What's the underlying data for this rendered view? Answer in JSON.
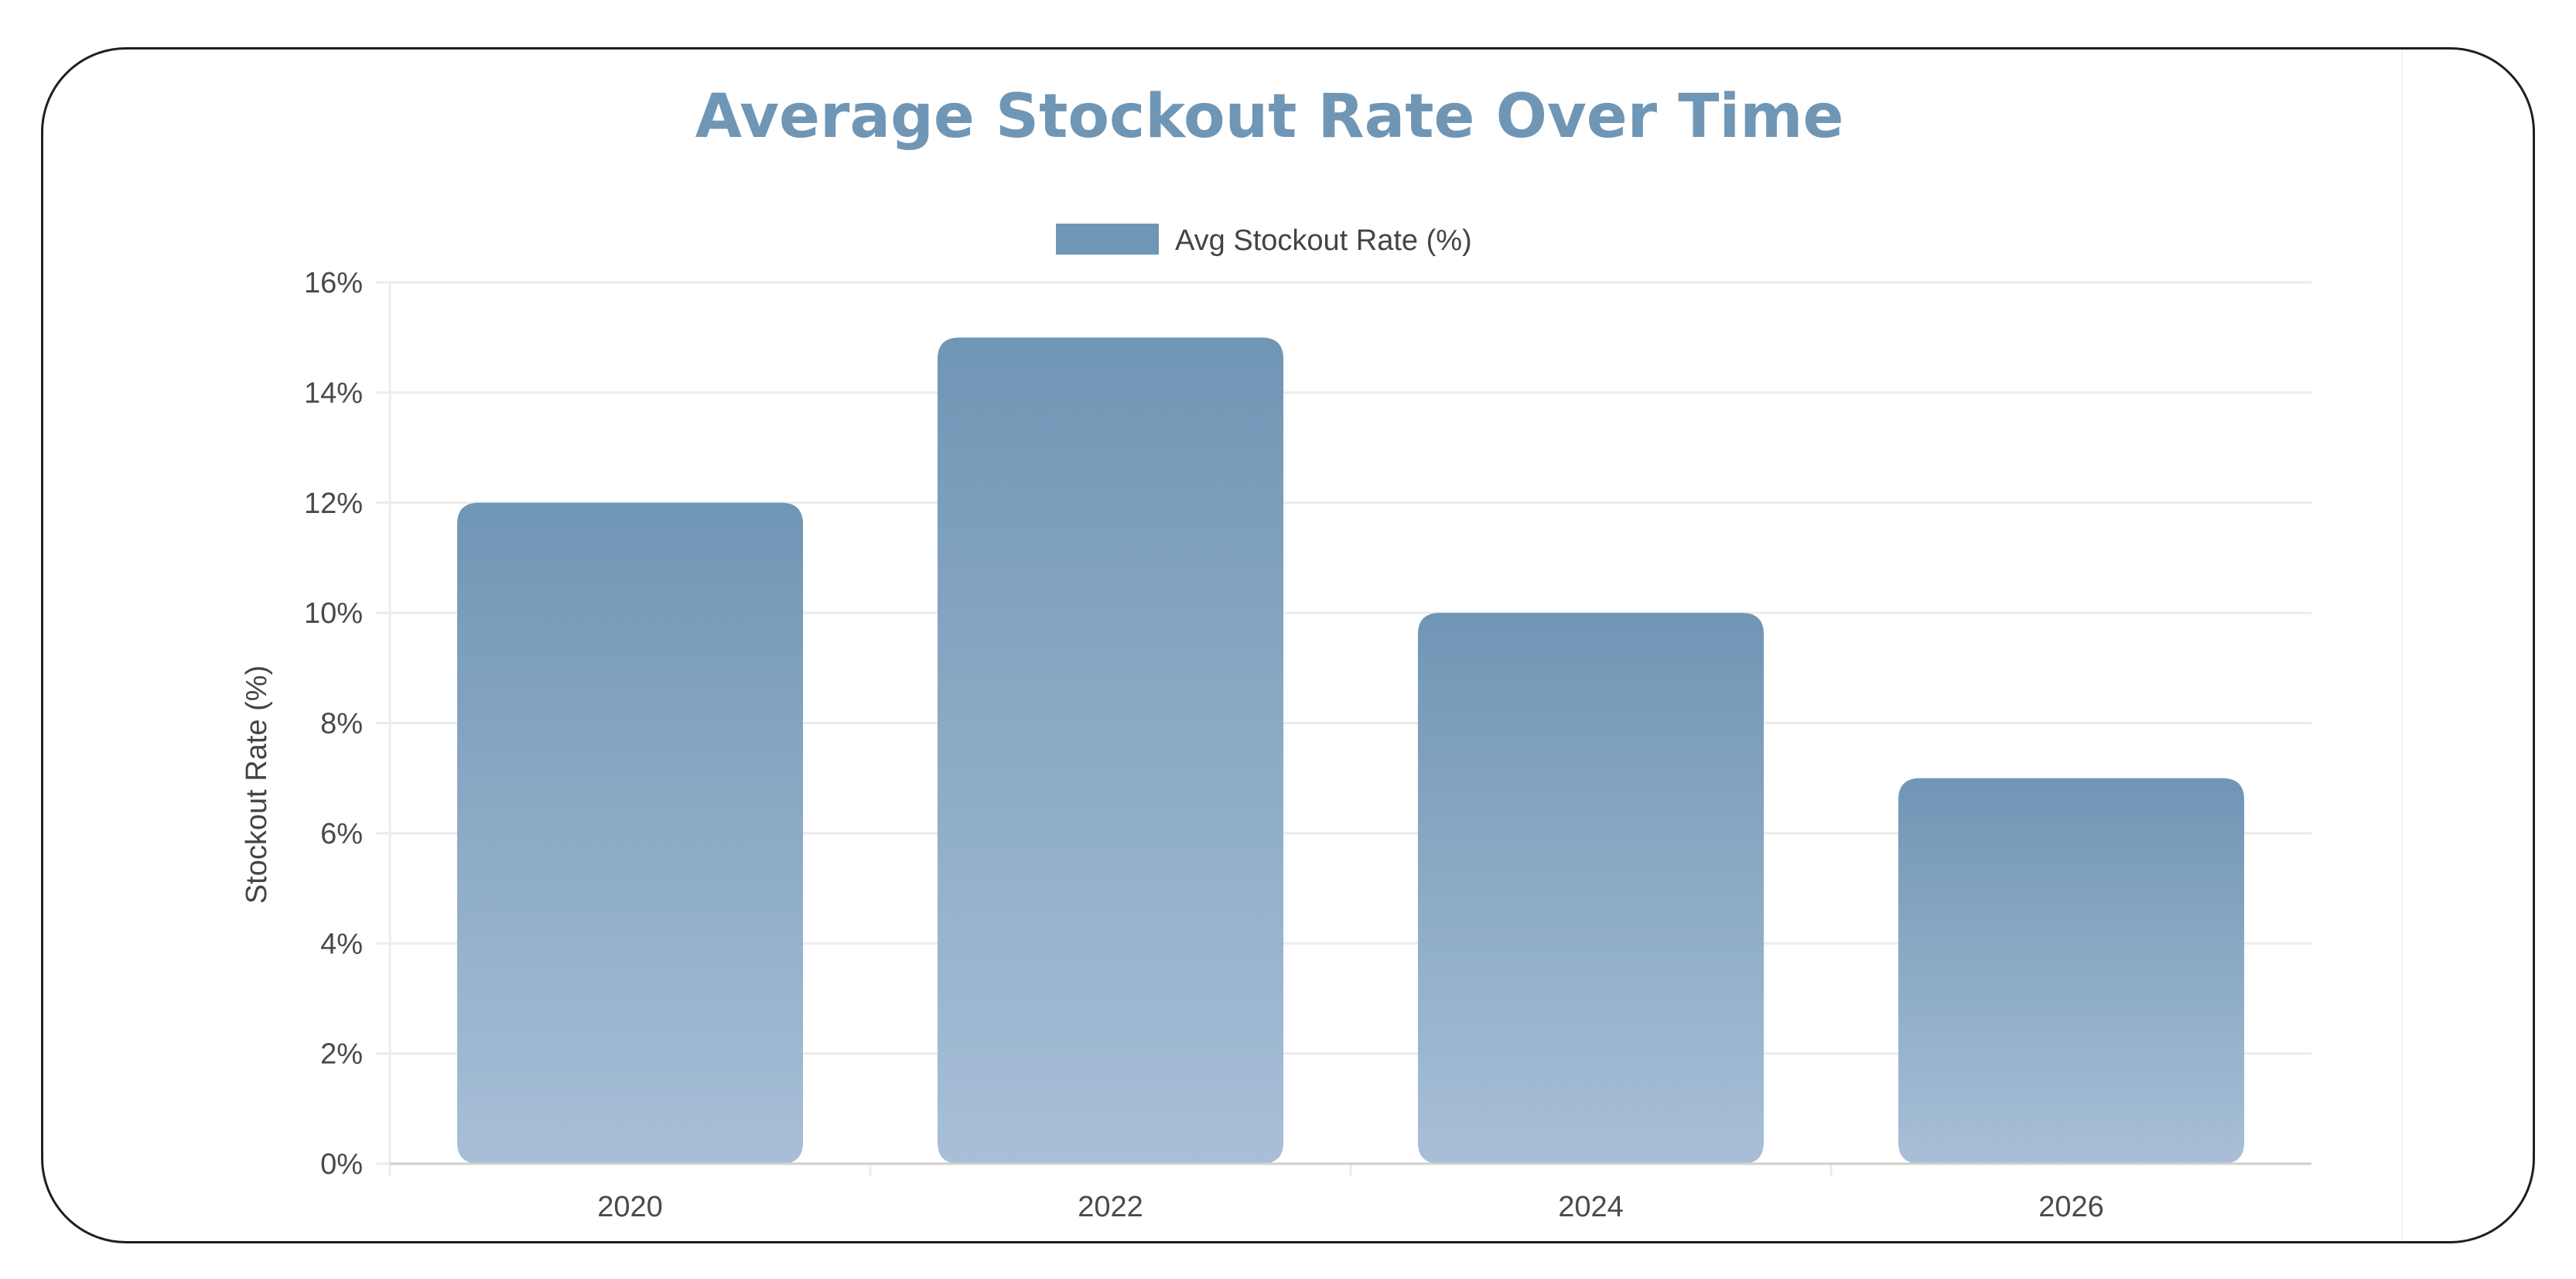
{
  "chart_data": {
    "type": "bar",
    "title": "Average Stockout Rate Over Time",
    "xlabel": "",
    "ylabel": "Stockout Rate (%)",
    "categories": [
      "2020",
      "2022",
      "2024",
      "2026"
    ],
    "series": [
      {
        "name": "Avg Stockout Rate (%)",
        "values": [
          12,
          15,
          10,
          7
        ]
      }
    ],
    "ylim": [
      0,
      16
    ],
    "yticks": [
      0,
      2,
      4,
      6,
      8,
      10,
      12,
      14,
      16
    ],
    "ytick_labels": [
      "0%",
      "2%",
      "4%",
      "6%",
      "8%",
      "10%",
      "12%",
      "14%",
      "16%"
    ],
    "grid": true,
    "legend_position": "top-center",
    "colors": {
      "title": "#7096b5",
      "bar_top": "#7096b5",
      "bar_bottom": "#a8bfd7",
      "legend_swatch": "#6f96b6",
      "grid": "#ececec",
      "axis": "#cfcfcf"
    }
  }
}
